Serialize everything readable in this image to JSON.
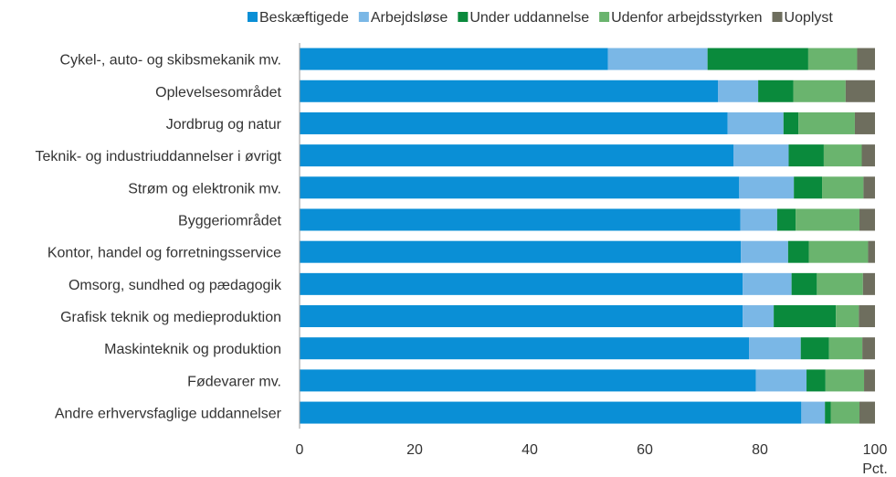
{
  "chart_data": {
    "type": "bar",
    "orientation": "horizontal",
    "stacked": true,
    "categories": [
      "Cykel-, auto- og skibsmekanik mv.",
      "Oplevelsesområdet",
      "Jordbrug og natur",
      "Teknik- og industriuddannelser i øvrigt",
      "Strøm og elektronik mv.",
      "Byggeriområdet",
      "Kontor, handel og forretningsservice",
      "Omsorg, sundhed og pædagogik",
      "Grafisk teknik og medieproduktion",
      "Maskinteknik og produktion",
      "Fødevarer mv.",
      "Andre erhvervsfaglige uddannelser"
    ],
    "series": [
      {
        "name": "Beskæftigede",
        "color": "#0a8fd6",
        "values": [
          53.6,
          72.7,
          74.4,
          75.4,
          76.4,
          76.6,
          76.7,
          77.0,
          77.0,
          78.1,
          79.3,
          87.2
        ]
      },
      {
        "name": "Arbejdsløse",
        "color": "#7ab7e6",
        "values": [
          17.3,
          7.0,
          9.7,
          9.6,
          9.5,
          6.4,
          8.2,
          8.5,
          5.4,
          9.0,
          8.8,
          4.1
        ]
      },
      {
        "name": "Under uddannelse",
        "color": "#0a8a3c",
        "values": [
          17.5,
          6.1,
          2.6,
          6.1,
          4.9,
          3.2,
          3.6,
          4.4,
          10.8,
          4.9,
          3.3,
          1.0
        ]
      },
      {
        "name": "Udenfor arbejdsstyrken",
        "color": "#6ab46e",
        "values": [
          8.5,
          9.1,
          9.8,
          6.6,
          7.2,
          11.1,
          10.3,
          8.0,
          4.0,
          5.8,
          6.7,
          5.0
        ]
      },
      {
        "name": "Uoplyst",
        "color": "#6e6e5e",
        "values": [
          3.1,
          5.1,
          3.5,
          2.3,
          2.0,
          2.7,
          1.2,
          2.1,
          2.8,
          2.2,
          1.9,
          2.7
        ]
      }
    ],
    "xlim": [
      0,
      100
    ],
    "xticks": [
      0,
      20,
      40,
      60,
      80,
      100
    ],
    "xlabel": "Pct.",
    "title": "",
    "ylabel": "",
    "grid": false,
    "legend_position": "top"
  }
}
